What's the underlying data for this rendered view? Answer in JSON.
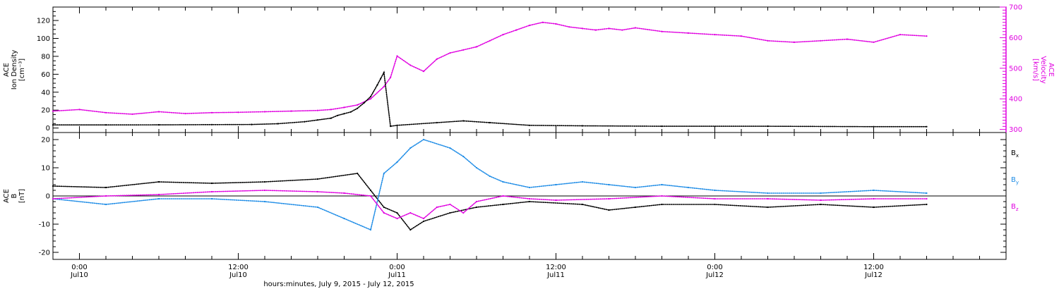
{
  "chart_data": [
    {
      "type": "scatter",
      "panel": "plasma",
      "title": "",
      "x_axis": {
        "range": [
          "2015-07-09T22:00",
          "2015-07-12T22:00"
        ],
        "major_ticks": [
          "2015-07-10T00:00",
          "2015-07-10T12:00",
          "2015-07-11T00:00",
          "2015-07-11T12:00",
          "2015-07-12T00:00",
          "2015-07-12T12:00"
        ],
        "tick_time_labels": [
          "0:00",
          "12:00",
          "0:00",
          "12:00",
          "0:00",
          "12:00"
        ],
        "tick_date_labels": [
          "Jul10",
          "Jul10",
          "Jul11",
          "Jul11",
          "Jul12",
          "Jul12"
        ],
        "title": "hours:minutes, July  9, 2015 - July 12, 2015"
      },
      "y_left": {
        "title_lines": [
          "ACE",
          "Ion Density"
        ],
        "unit": "[cm⁻³]",
        "range": [
          -5,
          135
        ],
        "ticks": [
          0,
          20,
          40,
          60,
          80,
          100,
          120
        ]
      },
      "y_right": {
        "title_lines": [
          "ACE",
          "Velocity"
        ],
        "unit": "[km/s]",
        "range": [
          290,
          700
        ],
        "ticks": [
          300,
          400,
          500,
          600,
          700
        ],
        "color": "#e000e0"
      },
      "series": [
        {
          "key": "density",
          "axis": "left",
          "color": "#000000",
          "points": [
            [
              "2015-07-09T22:00",
              3.5
            ],
            [
              "2015-07-10T02:00",
              3.5
            ],
            [
              "2015-07-10T06:00",
              3.6
            ],
            [
              "2015-07-10T10:00",
              3.8
            ],
            [
              "2015-07-10T13:00",
              4.0
            ],
            [
              "2015-07-10T15:00",
              4.8
            ],
            [
              "2015-07-10T17:00",
              7
            ],
            [
              "2015-07-10T18:00",
              9
            ],
            [
              "2015-07-10T19:00",
              11
            ],
            [
              "2015-07-10T19:30",
              14
            ],
            [
              "2015-07-10T20:00",
              16
            ],
            [
              "2015-07-10T20:30",
              18
            ],
            [
              "2015-07-10T21:00",
              22
            ],
            [
              "2015-07-10T21:30",
              28
            ],
            [
              "2015-07-10T22:00",
              35
            ],
            [
              "2015-07-10T22:30",
              48
            ],
            [
              "2015-07-10T22:45",
              55
            ],
            [
              "2015-07-10T23:00",
              62
            ],
            [
              "2015-07-10T23:30",
              2
            ],
            [
              "2015-07-11T00:00",
              3
            ],
            [
              "2015-07-11T03:00",
              6
            ],
            [
              "2015-07-11T05:00",
              8
            ],
            [
              "2015-07-11T07:00",
              6
            ],
            [
              "2015-07-11T10:00",
              3
            ],
            [
              "2015-07-11T14:00",
              2.5
            ],
            [
              "2015-07-11T20:00",
              2
            ],
            [
              "2015-07-12T04:00",
              2
            ],
            [
              "2015-07-12T12:00",
              1.5
            ],
            [
              "2015-07-12T16:00",
              1.5
            ]
          ]
        },
        {
          "key": "velocity",
          "axis": "right",
          "color": "#e000e0",
          "points": [
            [
              "2015-07-09T22:00",
              360
            ],
            [
              "2015-07-10T00:00",
              365
            ],
            [
              "2015-07-10T02:00",
              355
            ],
            [
              "2015-07-10T04:00",
              350
            ],
            [
              "2015-07-10T06:00",
              358
            ],
            [
              "2015-07-10T08:00",
              352
            ],
            [
              "2015-07-10T10:00",
              355
            ],
            [
              "2015-07-10T12:00",
              356
            ],
            [
              "2015-07-10T14:00",
              358
            ],
            [
              "2015-07-10T16:00",
              360
            ],
            [
              "2015-07-10T18:00",
              362
            ],
            [
              "2015-07-10T19:00",
              365
            ],
            [
              "2015-07-10T20:00",
              372
            ],
            [
              "2015-07-10T21:00",
              380
            ],
            [
              "2015-07-10T22:00",
              400
            ],
            [
              "2015-07-10T23:00",
              440
            ],
            [
              "2015-07-10T23:30",
              470
            ],
            [
              "2015-07-11T00:00",
              540
            ],
            [
              "2015-07-11T01:00",
              510
            ],
            [
              "2015-07-11T02:00",
              490
            ],
            [
              "2015-07-11T03:00",
              530
            ],
            [
              "2015-07-11T04:00",
              550
            ],
            [
              "2015-07-11T05:00",
              560
            ],
            [
              "2015-07-11T06:00",
              570
            ],
            [
              "2015-07-11T07:00",
              590
            ],
            [
              "2015-07-11T08:00",
              610
            ],
            [
              "2015-07-11T09:00",
              625
            ],
            [
              "2015-07-11T10:00",
              640
            ],
            [
              "2015-07-11T11:00",
              650
            ],
            [
              "2015-07-11T12:00",
              645
            ],
            [
              "2015-07-11T13:00",
              635
            ],
            [
              "2015-07-11T14:00",
              630
            ],
            [
              "2015-07-11T15:00",
              625
            ],
            [
              "2015-07-11T16:00",
              630
            ],
            [
              "2015-07-11T17:00",
              625
            ],
            [
              "2015-07-11T18:00",
              632
            ],
            [
              "2015-07-11T20:00",
              620
            ],
            [
              "2015-07-11T22:00",
              615
            ],
            [
              "2015-07-12T00:00",
              610
            ],
            [
              "2015-07-12T02:00",
              605
            ],
            [
              "2015-07-12T04:00",
              590
            ],
            [
              "2015-07-12T06:00",
              585
            ],
            [
              "2015-07-12T08:00",
              590
            ],
            [
              "2015-07-12T10:00",
              595
            ],
            [
              "2015-07-12T12:00",
              585
            ],
            [
              "2015-07-12T14:00",
              610
            ],
            [
              "2015-07-12T16:00",
              605
            ]
          ]
        }
      ]
    },
    {
      "type": "scatter",
      "panel": "magnetic-field",
      "title": "",
      "x_axis": {
        "range": [
          "2015-07-09T22:00",
          "2015-07-12T22:00"
        ]
      },
      "y_left": {
        "title_lines": [
          "ACE",
          "B"
        ],
        "unit": "[nT]",
        "range": [
          -22.5,
          22.5
        ],
        "ticks": [
          -20,
          -10,
          0,
          10,
          20
        ]
      },
      "zero_line": true,
      "legend_position": "right",
      "series": [
        {
          "key": "bx",
          "name": "B",
          "subscript": "x",
          "color": "#000000",
          "points": [
            [
              "2015-07-09T22:00",
              3.5
            ],
            [
              "2015-07-10T02:00",
              3
            ],
            [
              "2015-07-10T06:00",
              5
            ],
            [
              "2015-07-10T10:00",
              4.5
            ],
            [
              "2015-07-10T14:00",
              5
            ],
            [
              "2015-07-10T18:00",
              6
            ],
            [
              "2015-07-10T21:00",
              8
            ],
            [
              "2015-07-10T22:00",
              2
            ],
            [
              "2015-07-10T23:00",
              -4
            ],
            [
              "2015-07-11T00:00",
              -6
            ],
            [
              "2015-07-11T01:00",
              -12
            ],
            [
              "2015-07-11T02:00",
              -9
            ],
            [
              "2015-07-11T04:00",
              -6
            ],
            [
              "2015-07-11T06:00",
              -4
            ],
            [
              "2015-07-11T08:00",
              -3
            ],
            [
              "2015-07-11T10:00",
              -2
            ],
            [
              "2015-07-11T14:00",
              -3
            ],
            [
              "2015-07-11T16:00",
              -5
            ],
            [
              "2015-07-11T18:00",
              -4
            ],
            [
              "2015-07-11T20:00",
              -3
            ],
            [
              "2015-07-12T00:00",
              -3
            ],
            [
              "2015-07-12T04:00",
              -4
            ],
            [
              "2015-07-12T08:00",
              -3
            ],
            [
              "2015-07-12T12:00",
              -4
            ],
            [
              "2015-07-12T16:00",
              -3
            ]
          ]
        },
        {
          "key": "by",
          "name": "B",
          "subscript": "y",
          "color": "#1e8ce6",
          "points": [
            [
              "2015-07-09T22:00",
              -1
            ],
            [
              "2015-07-10T02:00",
              -3
            ],
            [
              "2015-07-10T06:00",
              -1
            ],
            [
              "2015-07-10T10:00",
              -1
            ],
            [
              "2015-07-10T14:00",
              -2
            ],
            [
              "2015-07-10T18:00",
              -4
            ],
            [
              "2015-07-10T20:00",
              -8
            ],
            [
              "2015-07-10T22:00",
              -12
            ],
            [
              "2015-07-10T23:00",
              8
            ],
            [
              "2015-07-11T00:00",
              12
            ],
            [
              "2015-07-11T01:00",
              17
            ],
            [
              "2015-07-11T02:00",
              20
            ],
            [
              "2015-07-11T04:00",
              17
            ],
            [
              "2015-07-11T05:00",
              14
            ],
            [
              "2015-07-11T06:00",
              10
            ],
            [
              "2015-07-11T07:00",
              7
            ],
            [
              "2015-07-11T08:00",
              5
            ],
            [
              "2015-07-11T10:00",
              3
            ],
            [
              "2015-07-11T12:00",
              4
            ],
            [
              "2015-07-11T14:00",
              5
            ],
            [
              "2015-07-11T16:00",
              4
            ],
            [
              "2015-07-11T18:00",
              3
            ],
            [
              "2015-07-11T20:00",
              4
            ],
            [
              "2015-07-11T22:00",
              3
            ],
            [
              "2015-07-12T00:00",
              2
            ],
            [
              "2015-07-12T04:00",
              1
            ],
            [
              "2015-07-12T08:00",
              1
            ],
            [
              "2015-07-12T12:00",
              2
            ],
            [
              "2015-07-12T16:00",
              1
            ]
          ]
        },
        {
          "key": "bz",
          "name": "B",
          "subscript": "z",
          "color": "#e000e0",
          "points": [
            [
              "2015-07-09T22:00",
              -1
            ],
            [
              "2015-07-10T02:00",
              0
            ],
            [
              "2015-07-10T06:00",
              0.5
            ],
            [
              "2015-07-10T10:00",
              1.5
            ],
            [
              "2015-07-10T14:00",
              2
            ],
            [
              "2015-07-10T18:00",
              1.5
            ],
            [
              "2015-07-10T20:00",
              1
            ],
            [
              "2015-07-10T22:00",
              0
            ],
            [
              "2015-07-10T23:00",
              -6
            ],
            [
              "2015-07-11T00:00",
              -8
            ],
            [
              "2015-07-11T01:00",
              -6
            ],
            [
              "2015-07-11T02:00",
              -8
            ],
            [
              "2015-07-11T03:00",
              -4
            ],
            [
              "2015-07-11T04:00",
              -3
            ],
            [
              "2015-07-11T05:00",
              -6
            ],
            [
              "2015-07-11T06:00",
              -2
            ],
            [
              "2015-07-11T08:00",
              0
            ],
            [
              "2015-07-11T10:00",
              -1
            ],
            [
              "2015-07-11T12:00",
              -1.5
            ],
            [
              "2015-07-11T16:00",
              -1
            ],
            [
              "2015-07-11T20:00",
              0
            ],
            [
              "2015-07-12T00:00",
              -1
            ],
            [
              "2015-07-12T04:00",
              -1
            ],
            [
              "2015-07-12T08:00",
              -1.5
            ],
            [
              "2015-07-12T12:00",
              -1
            ],
            [
              "2015-07-12T16:00",
              -1
            ]
          ]
        }
      ]
    }
  ]
}
